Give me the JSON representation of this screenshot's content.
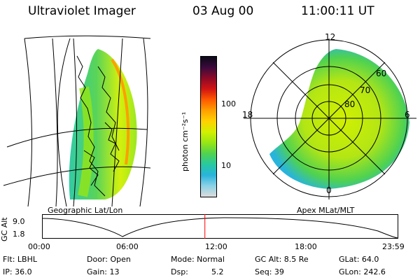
{
  "header": {
    "title": "Ultraviolet Imager",
    "date": "03 Aug 00",
    "time": "11:00:11  UT"
  },
  "left_panel": {
    "label": "Geographic Lat/Lon",
    "icon": "geographic-map"
  },
  "colorbar": {
    "unit_label": "photon cm⁻²s⁻¹",
    "ticks": [
      "100",
      "10"
    ],
    "colors": [
      "#0a0a18",
      "#3c0a3c",
      "#8c0a28",
      "#d21414",
      "#ff5a00",
      "#ffa000",
      "#ffd200",
      "#d2f000",
      "#96e614",
      "#50d250",
      "#28c8a0",
      "#28b4dc",
      "#8cd2e6",
      "#dcdcdc"
    ]
  },
  "right_panel": {
    "label": "Apex MLat/MLT",
    "mlt_labels": [
      "12",
      "18",
      "6",
      "0"
    ],
    "mlat_labels": [
      "60",
      "70",
      "80"
    ]
  },
  "timeline": {
    "ylabel": "GC Alt",
    "y_ticks": [
      "9.0",
      "1.8"
    ],
    "x_ticks": [
      "00:00",
      "06:00",
      "12:00",
      "18:00",
      "23:59"
    ],
    "current_time_fraction": 0.458,
    "marker_color": "#ff0000"
  },
  "info": {
    "flt": "Flt: LBHL",
    "ip": "IP: 36.0",
    "door": "Door: Open",
    "gain": "Gain: 13",
    "mode": "Mode: Normal",
    "dsp_label": "Dsp:",
    "dsp_value": "5.2",
    "gcalt": "GC Alt: 8.5 Re",
    "seq": "Seq: 39",
    "glat": "GLat:  64.0",
    "glon": "GLon: 242.6"
  }
}
